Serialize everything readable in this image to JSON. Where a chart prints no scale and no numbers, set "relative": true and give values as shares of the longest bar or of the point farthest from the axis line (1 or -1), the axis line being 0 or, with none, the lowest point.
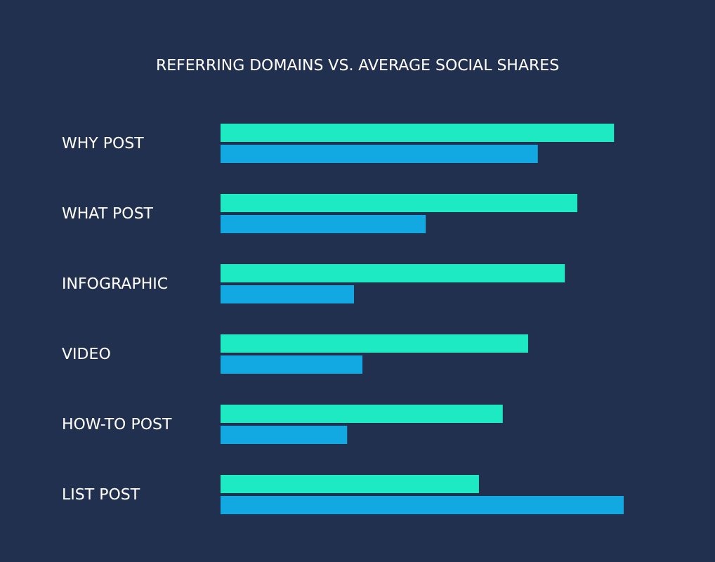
{
  "chart_data": {
    "type": "bar",
    "orientation": "horizontal",
    "relative": true,
    "title": "REFERRING DOMAINS VS. AVERAGE SOCIAL SHARES",
    "categories": [
      "WHY POST",
      "WHAT POST",
      "INFOGRAPHIC",
      "VIDEO",
      "HOW-TO POST",
      "LIST POST"
    ],
    "series": [
      {
        "color": "#1de9c3",
        "values": [
          0.976,
          0.885,
          0.854,
          0.763,
          0.7,
          0.641
        ]
      },
      {
        "color": "#12a9e3",
        "values": [
          0.787,
          0.509,
          0.331,
          0.352,
          0.314,
          1
        ]
      }
    ]
  }
}
